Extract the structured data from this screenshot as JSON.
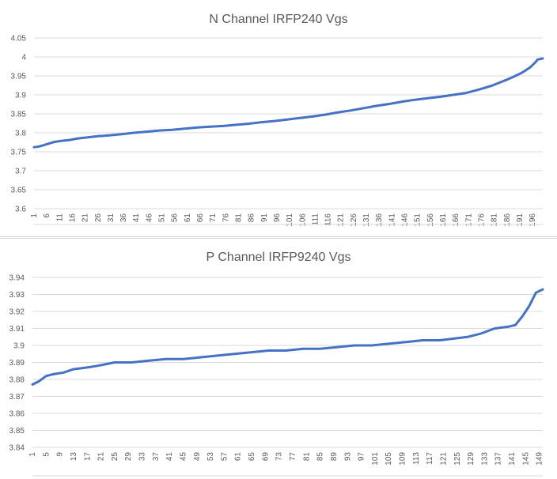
{
  "chart_data": [
    {
      "type": "line",
      "title": "N Channel IRFP240 Vgs",
      "xlabel": "",
      "ylabel": "",
      "x_range": [
        1,
        200
      ],
      "ylim": [
        3.6,
        4.05
      ],
      "y_ticks": [
        3.6,
        3.65,
        3.7,
        3.75,
        3.8,
        3.85,
        3.9,
        3.95,
        4,
        4.05
      ],
      "y_tick_labels": [
        "3.6",
        "3.65",
        "3.7",
        "3.75",
        "3.8",
        "3.85",
        "3.9",
        "3.95",
        "4",
        "4.05"
      ],
      "x_tick_labels": [
        "1",
        "6",
        "11",
        "16",
        "21",
        "26",
        "31",
        "36",
        "41",
        "46",
        "51",
        "56",
        "61",
        "66",
        "71",
        "76",
        "81",
        "86",
        "91",
        "96",
        "101",
        "106",
        "111",
        "116",
        "121",
        "126",
        "131",
        "136",
        "141",
        "146",
        "151",
        "156",
        "161",
        "166",
        "171",
        "176",
        "181",
        "186",
        "191",
        "196"
      ],
      "grid": "horizontal",
      "line_color": "#4472c4",
      "series": [
        {
          "x": [
            1,
            3,
            5,
            7,
            9,
            12,
            15,
            18,
            22,
            26,
            30,
            35,
            40,
            45,
            50,
            55,
            60,
            65,
            70,
            75,
            80,
            85,
            90,
            95,
            100,
            105,
            110,
            115,
            120,
            125,
            130,
            135,
            140,
            145,
            150,
            155,
            160,
            165,
            170,
            175,
            180,
            183,
            186,
            189,
            192,
            195,
            197,
            198,
            200
          ],
          "values": [
            3.762,
            3.764,
            3.768,
            3.772,
            3.776,
            3.779,
            3.781,
            3.785,
            3.788,
            3.791,
            3.793,
            3.796,
            3.8,
            3.803,
            3.806,
            3.808,
            3.811,
            3.814,
            3.816,
            3.818,
            3.821,
            3.824,
            3.828,
            3.831,
            3.835,
            3.839,
            3.843,
            3.848,
            3.854,
            3.859,
            3.865,
            3.871,
            3.876,
            3.882,
            3.887,
            3.891,
            3.895,
            3.9,
            3.905,
            3.914,
            3.924,
            3.932,
            3.94,
            3.949,
            3.959,
            3.972,
            3.985,
            3.993,
            3.996
          ]
        }
      ]
    },
    {
      "type": "line",
      "title": "P Channel IRFP9240 Vgs",
      "xlabel": "",
      "ylabel": "",
      "x_range": [
        1,
        150
      ],
      "ylim": [
        3.84,
        3.94
      ],
      "y_ticks": [
        3.84,
        3.85,
        3.86,
        3.87,
        3.88,
        3.89,
        3.9,
        3.91,
        3.92,
        3.93,
        3.94
      ],
      "y_tick_labels": [
        "3.84",
        "3.85",
        "3.86",
        "3.87",
        "3.88",
        "3.89",
        "3.9",
        "3.91",
        "3.92",
        "3.93",
        "3.94"
      ],
      "x_tick_labels": [
        "1",
        "5",
        "9",
        "13",
        "17",
        "21",
        "25",
        "29",
        "33",
        "37",
        "41",
        "45",
        "49",
        "53",
        "57",
        "61",
        "65",
        "69",
        "73",
        "77",
        "81",
        "85",
        "89",
        "93",
        "97",
        "101",
        "105",
        "109",
        "113",
        "117",
        "121",
        "125",
        "129",
        "133",
        "137",
        "141",
        "145",
        "149"
      ],
      "grid": "horizontal",
      "line_color": "#4472c4",
      "series": [
        {
          "x": [
            1,
            3,
            5,
            7,
            10,
            13,
            17,
            20,
            25,
            30,
            35,
            40,
            45,
            50,
            55,
            60,
            65,
            70,
            75,
            80,
            85,
            90,
            95,
            100,
            105,
            110,
            115,
            120,
            124,
            128,
            132,
            136,
            140,
            142,
            144,
            146,
            147,
            148,
            150
          ],
          "values": [
            3.877,
            3.879,
            3.882,
            3.883,
            3.884,
            3.886,
            3.887,
            3.888,
            3.89,
            3.89,
            3.891,
            3.892,
            3.892,
            3.893,
            3.894,
            3.895,
            3.896,
            3.897,
            3.897,
            3.898,
            3.898,
            3.899,
            3.9,
            3.9,
            3.901,
            3.902,
            3.903,
            3.903,
            3.904,
            3.905,
            3.907,
            3.91,
            3.911,
            3.912,
            3.917,
            3.923,
            3.927,
            3.931,
            3.933
          ]
        }
      ]
    }
  ]
}
